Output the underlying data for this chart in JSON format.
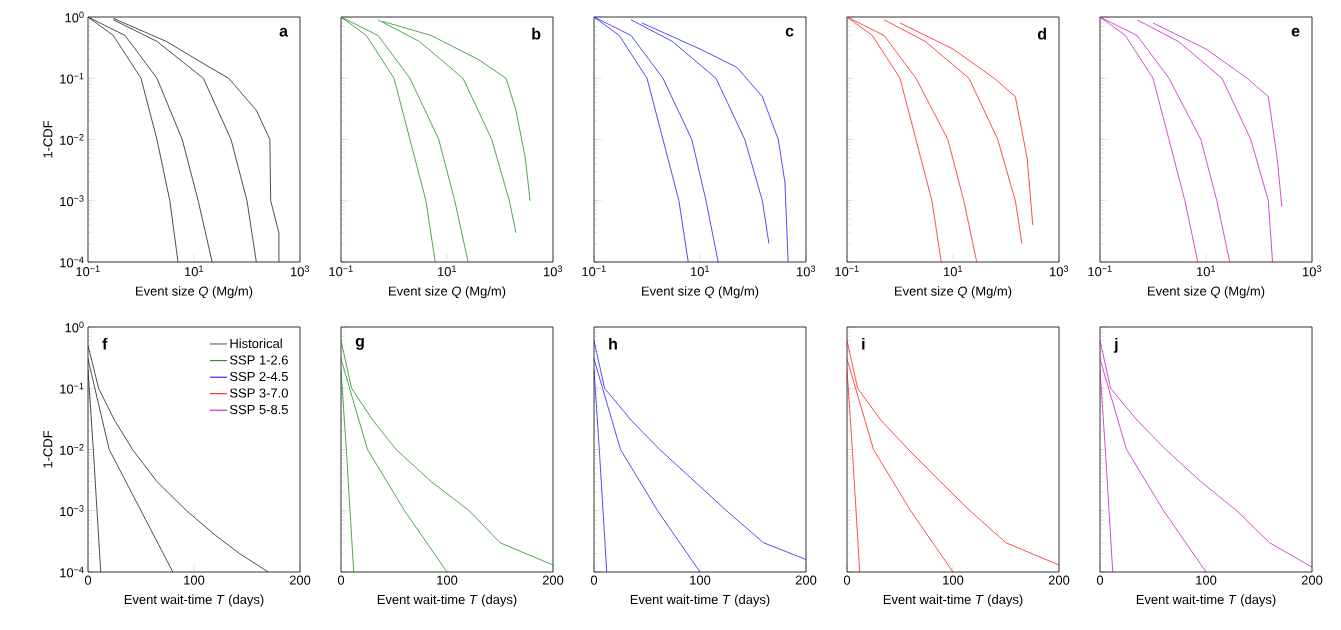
{
  "chart_data": [
    {
      "type": "line",
      "annotations": [
        "a"
      ],
      "xlabel": "Event size *Q* (Mg/m)",
      "ylabel": "1-CDF",
      "log": "xy",
      "xlim": [
        0.1,
        1000
      ],
      "ylim": [
        0.0001,
        1
      ],
      "xticks": [
        {
          "value": 0.1,
          "label": "10$^{−1}$"
        },
        {
          "value": 10,
          "label": "10$^{1}$"
        },
        {
          "value": 1000,
          "label": "10$^{3}$"
        }
      ],
      "yticks": [
        {
          "value": 0.0001,
          "label": "10$^{−4}$"
        },
        {
          "value": 0.001,
          "label": "10$^{−3}$"
        },
        {
          "value": 0.01,
          "label": "10$^{−2}$"
        },
        {
          "value": 0.1,
          "label": "10$^{−1}$"
        },
        {
          "value": 1,
          "label": "10$^{0}$"
        }
      ],
      "series": [
        {
          "color": "#000000",
          "x": [
            0.1,
            0.3,
            1,
            2,
            3.5,
            5
          ],
          "values": [
            1,
            0.5,
            0.1,
            0.01,
            0.001,
            0.0001
          ]
        },
        {
          "color": "#000000",
          "x": [
            0.1,
            0.5,
            2,
            6,
            12,
            22
          ],
          "values": [
            1,
            0.5,
            0.1,
            0.01,
            0.001,
            0.0001
          ]
        },
        {
          "color": "#000000",
          "x": [
            0.3,
            2,
            15,
            50,
            100,
            150
          ],
          "values": [
            0.9,
            0.4,
            0.1,
            0.01,
            0.001,
            0.0001
          ]
        },
        {
          "color": "#000000",
          "x": [
            0.3,
            3,
            20,
            45,
            150,
            270,
            280,
            400,
            400
          ],
          "values": [
            0.95,
            0.4,
            0.15,
            0.1,
            0.03,
            0.01,
            0.001,
            0.0003,
            0.0001
          ]
        }
      ]
    },
    {
      "type": "line",
      "annotations": [
        "b"
      ],
      "xlabel": "Event size *Q* (Mg/m)",
      "log": "xy",
      "xlim": [
        0.1,
        1000
      ],
      "ylim": [
        0.0001,
        1
      ],
      "tick_labels": "x",
      "xticks": [
        {
          "value": 0.1,
          "label": "10$^{−1}$"
        },
        {
          "value": 10,
          "label": "10$^{1}$"
        },
        {
          "value": 1000,
          "label": "10$^{3}$"
        }
      ],
      "yticks": [
        {
          "value": 0.0001,
          "label": null
        },
        {
          "value": 0.001,
          "label": null
        },
        {
          "value": 0.01,
          "label": null
        },
        {
          "value": 0.1,
          "label": null
        },
        {
          "value": 1,
          "label": null
        }
      ],
      "series": [
        {
          "color": "#008000",
          "x": [
            0.1,
            0.3,
            1,
            2,
            4,
            6
          ],
          "values": [
            1,
            0.5,
            0.1,
            0.01,
            0.001,
            0.0001
          ]
        },
        {
          "color": "#008000",
          "x": [
            0.1,
            0.5,
            2,
            7,
            14,
            25
          ],
          "values": [
            1,
            0.5,
            0.1,
            0.01,
            0.001,
            0.0001
          ]
        },
        {
          "color": "#008000",
          "x": [
            0.5,
            3,
            20,
            70,
            150,
            200
          ],
          "values": [
            0.9,
            0.4,
            0.1,
            0.01,
            0.001,
            0.0003
          ]
        },
        {
          "color": "#008000",
          "x": [
            0.6,
            5,
            40,
            130,
            200,
            300,
            370
          ],
          "values": [
            0.85,
            0.5,
            0.2,
            0.1,
            0.03,
            0.005,
            0.001
          ]
        }
      ]
    },
    {
      "type": "line",
      "annotations": [
        "c"
      ],
      "xlabel": "Event size *Q* (Mg/m)",
      "log": "xy",
      "xlim": [
        0.1,
        1000
      ],
      "ylim": [
        0.0001,
        1
      ],
      "tick_labels": "x",
      "xticks": [
        {
          "value": 0.1,
          "label": "10$^{−1}$"
        },
        {
          "value": 10,
          "label": "10$^{1}$"
        },
        {
          "value": 1000,
          "label": "10$^{3}$"
        }
      ],
      "yticks": [
        {
          "value": 0.0001,
          "label": null
        },
        {
          "value": 0.001,
          "label": null
        },
        {
          "value": 0.01,
          "label": null
        },
        {
          "value": 0.1,
          "label": null
        },
        {
          "value": 1,
          "label": null
        }
      ],
      "series": [
        {
          "color": "#0000ff",
          "x": [
            0.1,
            0.3,
            1,
            2,
            4,
            6
          ],
          "values": [
            1,
            0.5,
            0.1,
            0.01,
            0.001,
            0.0001
          ]
        },
        {
          "color": "#0000ff",
          "x": [
            0.1,
            0.5,
            2,
            7,
            13,
            22
          ],
          "values": [
            1,
            0.5,
            0.1,
            0.01,
            0.001,
            0.0001
          ]
        },
        {
          "color": "#0000ff",
          "x": [
            0.5,
            3,
            20,
            70,
            150,
            200
          ],
          "values": [
            0.9,
            0.4,
            0.1,
            0.01,
            0.001,
            0.0002
          ]
        },
        {
          "color": "#0000ff",
          "x": [
            0.8,
            10,
            50,
            150,
            300,
            400,
            460
          ],
          "values": [
            0.8,
            0.3,
            0.15,
            0.05,
            0.01,
            0.002,
            0.0001
          ]
        }
      ]
    },
    {
      "type": "line",
      "annotations": [
        "d"
      ],
      "xlabel": "Event size *Q* (Mg/m)",
      "log": "xy",
      "xlim": [
        0.1,
        1000
      ],
      "ylim": [
        0.0001,
        1
      ],
      "tick_labels": "x",
      "xticks": [
        {
          "value": 0.1,
          "label": "10$^{−1}$"
        },
        {
          "value": 10,
          "label": "10$^{1}$"
        },
        {
          "value": 1000,
          "label": "10$^{3}$"
        }
      ],
      "yticks": [
        {
          "value": 0.0001,
          "label": null
        },
        {
          "value": 0.001,
          "label": null
        },
        {
          "value": 0.01,
          "label": null
        },
        {
          "value": 0.1,
          "label": null
        },
        {
          "value": 1,
          "label": null
        }
      ],
      "series": [
        {
          "color": "#ff0000",
          "x": [
            0.1,
            0.3,
            1,
            2,
            4,
            6
          ],
          "values": [
            1,
            0.5,
            0.1,
            0.01,
            0.001,
            0.0001
          ]
        },
        {
          "color": "#ff0000",
          "x": [
            0.1,
            0.5,
            2,
            8,
            16,
            28
          ],
          "values": [
            1,
            0.5,
            0.1,
            0.01,
            0.001,
            0.0001
          ]
        },
        {
          "color": "#ff0000",
          "x": [
            0.5,
            3,
            20,
            70,
            150,
            200
          ],
          "values": [
            0.9,
            0.4,
            0.1,
            0.01,
            0.001,
            0.0002
          ]
        },
        {
          "color": "#ff0000",
          "x": [
            1,
            10,
            60,
            150,
            250,
            320
          ],
          "values": [
            0.8,
            0.3,
            0.1,
            0.05,
            0.005,
            0.0004
          ]
        }
      ]
    },
    {
      "type": "line",
      "annotations": [
        "e"
      ],
      "xlabel": "Event size *Q* (Mg/m)",
      "log": "xy",
      "xlim": [
        0.1,
        1000
      ],
      "ylim": [
        0.0001,
        1
      ],
      "tick_labels": "x",
      "xticks": [
        {
          "value": 0.1,
          "label": "10$^{−1}$"
        },
        {
          "value": 10,
          "label": "10$^{1}$"
        },
        {
          "value": 1000,
          "label": "10$^{3}$"
        }
      ],
      "yticks": [
        {
          "value": 0.0001,
          "label": null
        },
        {
          "value": 0.001,
          "label": null
        },
        {
          "value": 0.01,
          "label": null
        },
        {
          "value": 0.1,
          "label": null
        },
        {
          "value": 1,
          "label": null
        }
      ],
      "series": [
        {
          "color": "#bf00bf",
          "x": [
            0.1,
            0.3,
            1,
            2,
            4,
            7
          ],
          "values": [
            1,
            0.5,
            0.1,
            0.01,
            0.001,
            0.0001
          ]
        },
        {
          "color": "#bf00bf",
          "x": [
            0.1,
            0.5,
            2,
            8,
            16,
            28
          ],
          "values": [
            1,
            0.5,
            0.1,
            0.01,
            0.001,
            0.0001
          ]
        },
        {
          "color": "#bf00bf",
          "x": [
            0.5,
            3,
            20,
            70,
            150,
            180
          ],
          "values": [
            0.9,
            0.4,
            0.1,
            0.01,
            0.001,
            0.0001
          ]
        },
        {
          "color": "#bf00bf",
          "x": [
            1,
            10,
            60,
            150,
            220,
            270
          ],
          "values": [
            0.8,
            0.3,
            0.1,
            0.05,
            0.005,
            0.0008
          ]
        }
      ]
    },
    {
      "type": "line",
      "annotations": [
        "f"
      ],
      "xlabel": "Event wait-time *T* (days)",
      "ylabel": "1-CDF",
      "log": "y",
      "xlim": [
        0,
        200
      ],
      "ylim": [
        0.0001,
        1
      ],
      "legend": "top right",
      "xticks": [
        0,
        100,
        200
      ],
      "yticks": [
        {
          "value": 0.0001,
          "label": "10$^{−4}$"
        },
        {
          "value": 0.001,
          "label": "10$^{−3}$"
        },
        {
          "value": 0.01,
          "label": "10$^{−2}$"
        },
        {
          "value": 0.1,
          "label": "10$^{−1}$"
        },
        {
          "value": 1,
          "label": "10$^{0}$"
        }
      ],
      "series": [
        {
          "name": "Historical",
          "color": "#000000",
          "x": [
            0,
            10,
            25,
            42,
            65,
            93,
            120,
            143,
            170
          ],
          "values": [
            0.5,
            0.1,
            0.03,
            0.01,
            0.003,
            0.001,
            0.0004,
            0.0002,
            0.0001
          ]
        },
        {
          "color": "#000000",
          "x": [
            0,
            20,
            50,
            80
          ],
          "values": [
            0.3,
            0.01,
            0.001,
            0.0001
          ]
        },
        {
          "color": "#000000",
          "x": [
            0,
            5,
            12
          ],
          "values": [
            0.2,
            0.01,
            0.0001
          ]
        },
        {
          "name": "SSP 1-2.6",
          "color": "#008000"
        },
        {
          "name": "SSP 2-4.5",
          "color": "#0000ff"
        },
        {
          "name": "SSP 3-7.0",
          "color": "#ff0000"
        },
        {
          "name": "SSP 5-8.5",
          "color": "#bf00bf"
        }
      ]
    },
    {
      "type": "line",
      "annotations": [
        "g"
      ],
      "xlabel": "Event wait-time *T* (days)",
      "log": "y",
      "xlim": [
        0,
        200
      ],
      "ylim": [
        0.0001,
        1
      ],
      "tick_labels": "x",
      "xticks": [
        0,
        100,
        200
      ],
      "yticks": [
        {
          "value": 0.0001,
          "label": null
        },
        {
          "value": 0.001,
          "label": null
        },
        {
          "value": 0.01,
          "label": null
        },
        {
          "value": 0.1,
          "label": null
        },
        {
          "value": 1,
          "label": null
        }
      ],
      "series": [
        {
          "color": "#008000",
          "x": [
            0,
            10,
            30,
            52,
            85,
            121,
            150,
            200
          ],
          "values": [
            0.6,
            0.1,
            0.03,
            0.01,
            0.003,
            0.001,
            0.0003,
            0.00013
          ]
        },
        {
          "color": "#008000",
          "x": [
            0,
            25,
            60,
            100
          ],
          "values": [
            0.3,
            0.01,
            0.001,
            0.0001
          ]
        },
        {
          "color": "#008000",
          "x": [
            0,
            5,
            12
          ],
          "values": [
            0.2,
            0.01,
            0.0001
          ]
        }
      ]
    },
    {
      "type": "line",
      "annotations": [
        "h"
      ],
      "xlabel": "Event wait-time *T* (days)",
      "log": "y",
      "xlim": [
        0,
        200
      ],
      "ylim": [
        0.0001,
        1
      ],
      "tick_labels": "x",
      "xticks": [
        0,
        100,
        200
      ],
      "yticks": [
        {
          "value": 0.0001,
          "label": null
        },
        {
          "value": 0.001,
          "label": null
        },
        {
          "value": 0.01,
          "label": null
        },
        {
          "value": 0.1,
          "label": null
        },
        {
          "value": 1,
          "label": null
        }
      ],
      "series": [
        {
          "color": "#0000ff",
          "x": [
            0,
            10,
            35,
            62,
            95,
            125,
            160,
            200
          ],
          "values": [
            0.6,
            0.1,
            0.03,
            0.01,
            0.003,
            0.001,
            0.0003,
            0.00016
          ]
        },
        {
          "color": "#0000ff",
          "x": [
            0,
            25,
            60,
            100
          ],
          "values": [
            0.3,
            0.01,
            0.001,
            0.0001
          ]
        },
        {
          "color": "#0000ff",
          "x": [
            0,
            5,
            12
          ],
          "values": [
            0.2,
            0.01,
            0.0001
          ]
        }
      ]
    },
    {
      "type": "line",
      "annotations": [
        "i"
      ],
      "xlabel": "Event wait-time *T* (days)",
      "log": "y",
      "xlim": [
        0,
        200
      ],
      "ylim": [
        0.0001,
        1
      ],
      "tick_labels": "x",
      "xticks": [
        0,
        100,
        200
      ],
      "yticks": [
        {
          "value": 0.0001,
          "label": null
        },
        {
          "value": 0.001,
          "label": null
        },
        {
          "value": 0.01,
          "label": null
        },
        {
          "value": 0.1,
          "label": null
        },
        {
          "value": 1,
          "label": null
        }
      ],
      "series": [
        {
          "color": "#ff0000",
          "x": [
            0,
            10,
            32,
            58,
            88,
            116,
            150,
            200
          ],
          "values": [
            0.6,
            0.1,
            0.03,
            0.01,
            0.003,
            0.001,
            0.0003,
            0.00013
          ]
        },
        {
          "color": "#ff0000",
          "x": [
            0,
            25,
            60,
            100
          ],
          "values": [
            0.3,
            0.01,
            0.001,
            0.0001
          ]
        },
        {
          "color": "#ff0000",
          "x": [
            0,
            5,
            12
          ],
          "values": [
            0.2,
            0.01,
            0.0001
          ]
        }
      ]
    },
    {
      "type": "line",
      "annotations": [
        "j"
      ],
      "xlabel": "Event wait-time *T* (days)",
      "log": "y",
      "xlim": [
        0,
        200
      ],
      "ylim": [
        0.0001,
        1
      ],
      "tick_labels": "x",
      "xticks": [
        0,
        100,
        200
      ],
      "yticks": [
        {
          "value": 0.0001,
          "label": null
        },
        {
          "value": 0.001,
          "label": null
        },
        {
          "value": 0.01,
          "label": null
        },
        {
          "value": 0.1,
          "label": null
        },
        {
          "value": 1,
          "label": null
        }
      ],
      "series": [
        {
          "color": "#bf00bf",
          "x": [
            0,
            10,
            35,
            62,
            95,
            129,
            160,
            200
          ],
          "values": [
            0.6,
            0.1,
            0.03,
            0.01,
            0.003,
            0.001,
            0.0003,
            0.00012
          ]
        },
        {
          "color": "#bf00bf",
          "x": [
            0,
            25,
            60,
            100
          ],
          "values": [
            0.3,
            0.01,
            0.001,
            0.0001
          ]
        },
        {
          "color": "#bf00bf",
          "x": [
            0,
            5,
            12
          ],
          "values": [
            0.2,
            0.01,
            0.0001
          ]
        }
      ]
    }
  ]
}
